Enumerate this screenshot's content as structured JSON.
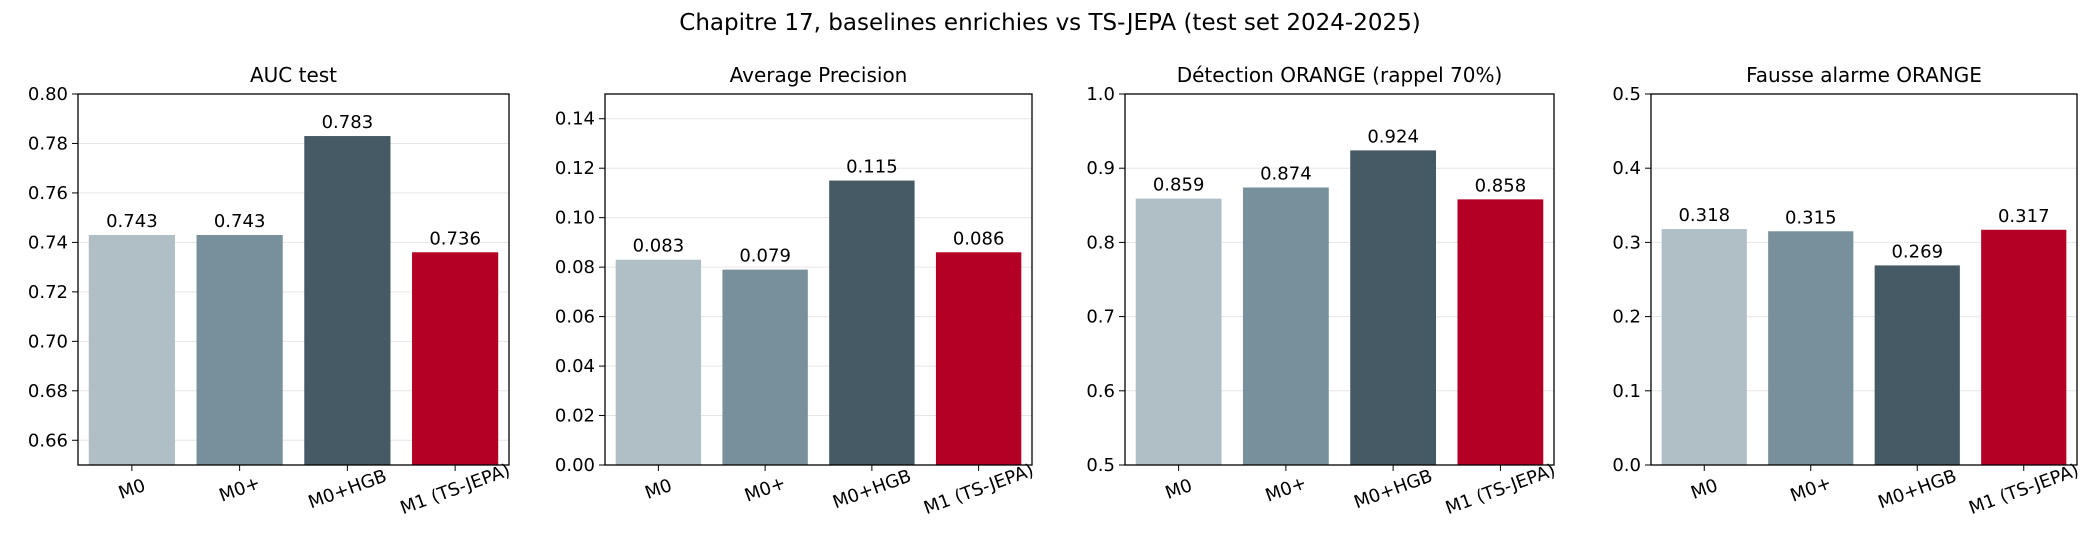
{
  "figure": {
    "title": "Chapitre 17, baselines enrichies vs TS-JEPA (test set 2024-2025)",
    "categories": [
      "M0",
      "M0+",
      "M0+HGB",
      "M1 (TS-JEPA)"
    ],
    "colors": [
      "#b0bec5",
      "#78909c",
      "#455a64",
      "#b30024"
    ]
  },
  "chart_data": [
    {
      "type": "bar",
      "title": "AUC test",
      "categories": [
        "M0",
        "M0+",
        "M0+HGB",
        "M1 (TS-JEPA)"
      ],
      "values": [
        0.743,
        0.743,
        0.783,
        0.736
      ],
      "labels": [
        "0.743",
        "0.743",
        "0.783",
        "0.736"
      ],
      "ylim": [
        0.65,
        0.8
      ],
      "yticks": [
        0.66,
        0.68,
        0.7,
        0.72,
        0.74,
        0.76,
        0.78,
        0.8
      ],
      "ytick_labels": [
        "0.66",
        "0.68",
        "0.70",
        "0.72",
        "0.74",
        "0.76",
        "0.78",
        "0.80"
      ],
      "grid": "y"
    },
    {
      "type": "bar",
      "title": "Average Precision",
      "categories": [
        "M0",
        "M0+",
        "M0+HGB",
        "M1 (TS-JEPA)"
      ],
      "values": [
        0.083,
        0.079,
        0.115,
        0.086
      ],
      "labels": [
        "0.083",
        "0.079",
        "0.115",
        "0.086"
      ],
      "ylim": [
        0,
        0.15
      ],
      "yticks": [
        0,
        0.02,
        0.04,
        0.06,
        0.08,
        0.1,
        0.12,
        0.14
      ],
      "ytick_labels": [
        "0.00",
        "0.02",
        "0.04",
        "0.06",
        "0.08",
        "0.10",
        "0.12",
        "0.14"
      ],
      "grid": "y"
    },
    {
      "type": "bar",
      "title": "Détection ORANGE (rappel 70%)",
      "categories": [
        "M0",
        "M0+",
        "M0+HGB",
        "M1 (TS-JEPA)"
      ],
      "values": [
        0.859,
        0.874,
        0.924,
        0.858
      ],
      "labels": [
        "0.859",
        "0.874",
        "0.924",
        "0.858"
      ],
      "ylim": [
        0.5,
        1.0
      ],
      "yticks": [
        0.5,
        0.6,
        0.7,
        0.8,
        0.9,
        1.0
      ],
      "ytick_labels": [
        "0.5",
        "0.6",
        "0.7",
        "0.8",
        "0.9",
        "1.0"
      ],
      "grid": "y"
    },
    {
      "type": "bar",
      "title": "Fausse alarme ORANGE",
      "categories": [
        "M0",
        "M0+",
        "M0+HGB",
        "M1 (TS-JEPA)"
      ],
      "values": [
        0.318,
        0.315,
        0.269,
        0.317
      ],
      "labels": [
        "0.318",
        "0.315",
        "0.269",
        "0.317"
      ],
      "ylim": [
        0,
        0.5
      ],
      "yticks": [
        0,
        0.1,
        0.2,
        0.3,
        0.4,
        0.5
      ],
      "ytick_labels": [
        "0.0",
        "0.1",
        "0.2",
        "0.3",
        "0.4",
        "0.5"
      ],
      "grid": "y"
    }
  ]
}
